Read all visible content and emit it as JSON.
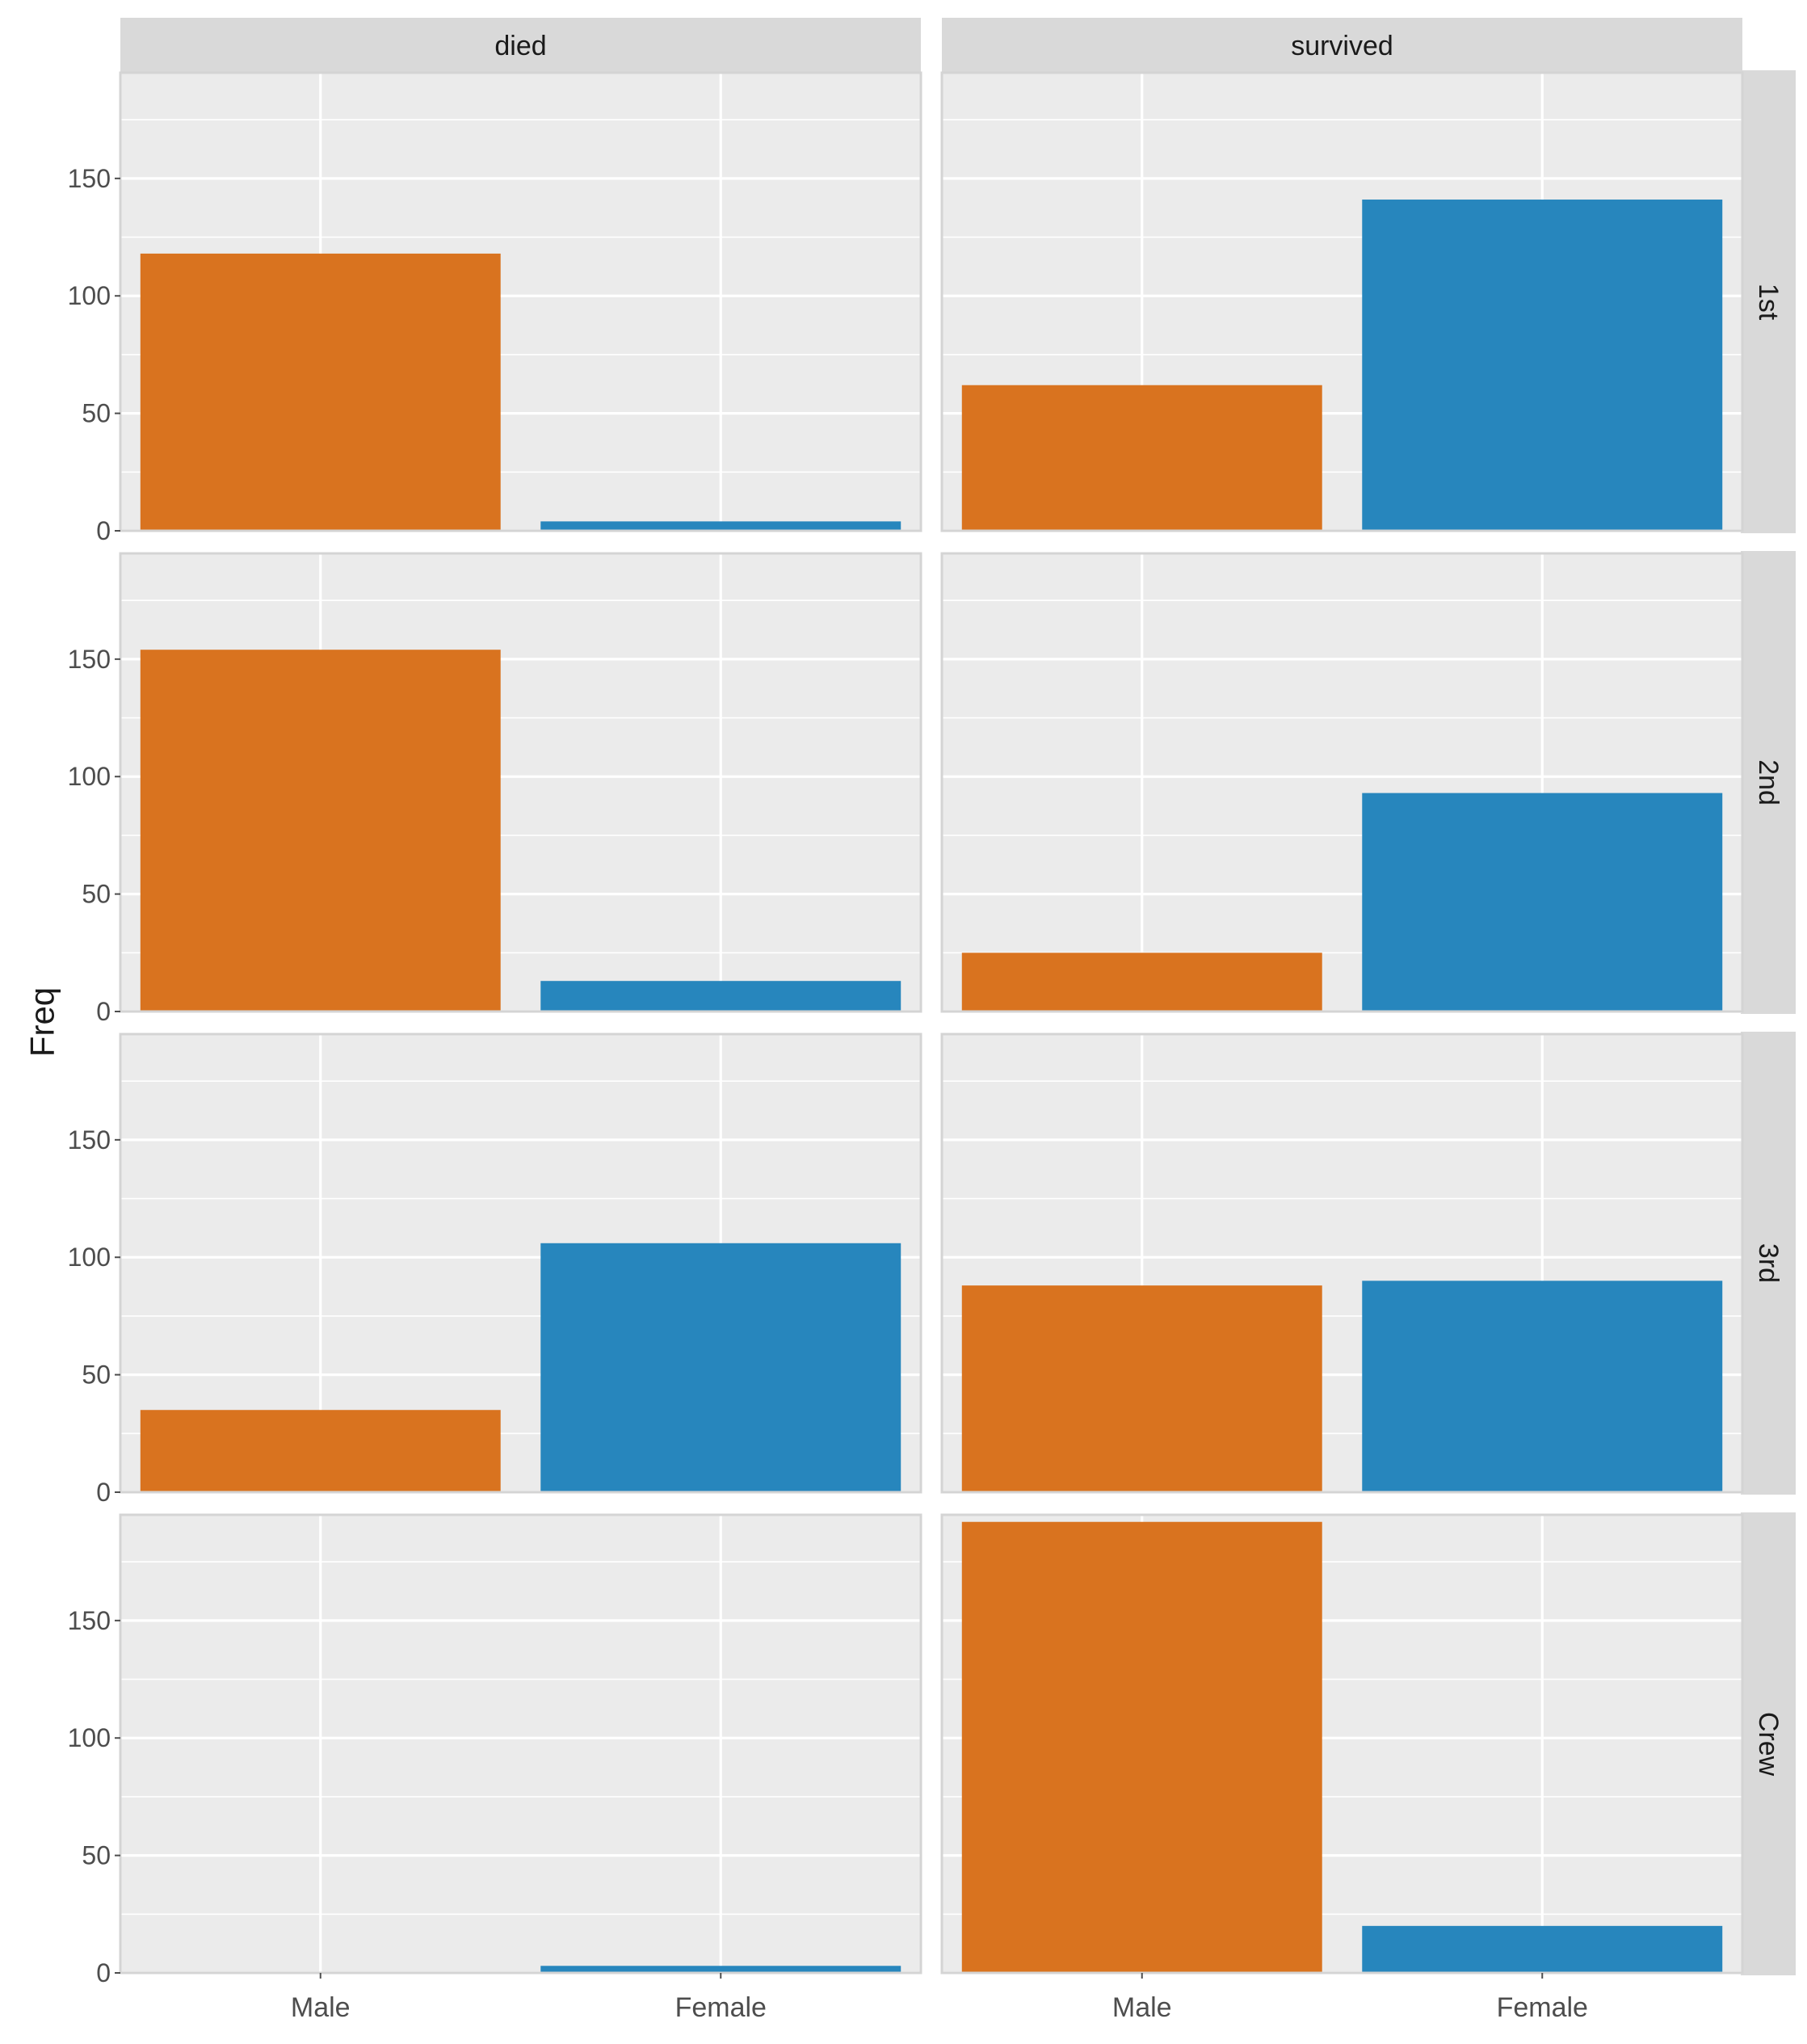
{
  "chart_data": {
    "type": "bar",
    "layout": "facet_grid",
    "ylabel": "Freq",
    "xlabel": "",
    "categories": [
      "Male",
      "Female"
    ],
    "column_facets": [
      "died",
      "survived"
    ],
    "row_facets": [
      "1st",
      "2nd",
      "3rd",
      "Crew"
    ],
    "ylim": [
      0,
      195
    ],
    "yticks": [
      0,
      50,
      100,
      150
    ],
    "colors": {
      "Male": "#d9731f",
      "Female": "#2786bd",
      "panel_bg": "#ebebeb",
      "strip_bg": "#d9d9d9",
      "grid": "#ffffff"
    },
    "panels": [
      {
        "column": "died",
        "row": "1st",
        "values": [
          118,
          4
        ]
      },
      {
        "column": "survived",
        "row": "1st",
        "values": [
          62,
          141
        ]
      },
      {
        "column": "died",
        "row": "2nd",
        "values": [
          154,
          13
        ]
      },
      {
        "column": "survived",
        "row": "2nd",
        "values": [
          25,
          93
        ]
      },
      {
        "column": "died",
        "row": "3rd",
        "values": [
          35,
          106
        ]
      },
      {
        "column": "survived",
        "row": "3rd",
        "values": [
          88,
          90
        ]
      },
      {
        "column": "died",
        "row": "Crew",
        "values": [
          0,
          3
        ]
      },
      {
        "column": "survived",
        "row": "Crew",
        "values": [
          192,
          20
        ]
      }
    ]
  }
}
